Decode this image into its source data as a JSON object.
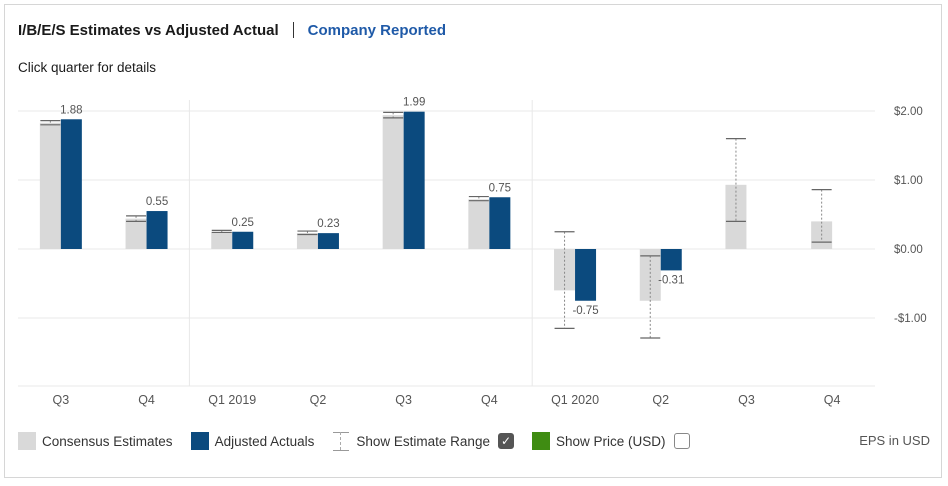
{
  "header": {
    "active_tab": "I/B/E/S Estimates vs Adjusted Actual",
    "link_tab": "Company Reported",
    "instruction": "Click quarter for details"
  },
  "legend": {
    "consensus": "Consensus Estimates",
    "actuals": "Adjusted Actuals",
    "range": "Show Estimate Range",
    "price": "Show Price (USD)",
    "range_checked": true,
    "price_checked": false,
    "units": "EPS in USD"
  },
  "colors": {
    "consensus": "#d9d9d9",
    "actual": "#0b4a7e",
    "price": "#3f8c12",
    "grid": "#e8e8e8",
    "range_tick": "#666666"
  },
  "chart_data": {
    "type": "bar",
    "title": "I/B/E/S Estimates vs Adjusted Actual",
    "categories": [
      "Q3",
      "Q4",
      "Q1 2019",
      "Q2",
      "Q3",
      "Q4",
      "Q1 2020",
      "Q2",
      "Q3",
      "Q4"
    ],
    "ylim": [
      -1.9,
      2.0
    ],
    "yticks": [
      2.0,
      1.0,
      0.0,
      -1.0
    ],
    "ytick_labels": [
      "$2.00",
      "$1.00",
      "$0.00",
      "-$1.00"
    ],
    "series": [
      {
        "name": "Consensus Estimates",
        "values": [
          1.83,
          0.44,
          0.25,
          0.23,
          1.94,
          0.72,
          -0.6,
          -0.75,
          0.93,
          0.4
        ]
      },
      {
        "name": "Adjusted Actuals",
        "values": [
          1.88,
          0.55,
          0.25,
          0.23,
          1.99,
          0.75,
          -0.75,
          -0.31,
          null,
          null
        ],
        "labels": [
          "1.88",
          "0.55",
          "0.25",
          "0.23",
          "1.99",
          "0.75",
          "-0.75",
          "-0.31",
          "",
          ""
        ]
      }
    ],
    "estimate_range": [
      {
        "low": 1.8,
        "high": 1.86
      },
      {
        "low": 0.4,
        "high": 0.48
      },
      {
        "low": 0.24,
        "high": 0.27
      },
      {
        "low": 0.21,
        "high": 0.26
      },
      {
        "low": 1.9,
        "high": 1.98
      },
      {
        "low": 0.7,
        "high": 0.76
      },
      {
        "low": -1.15,
        "high": 0.25
      },
      {
        "low": -1.29,
        "high": -0.1
      },
      {
        "low": 0.4,
        "high": 1.6
      },
      {
        "low": 0.1,
        "high": 0.86
      }
    ],
    "grid": true,
    "legend_position": "bottom"
  }
}
